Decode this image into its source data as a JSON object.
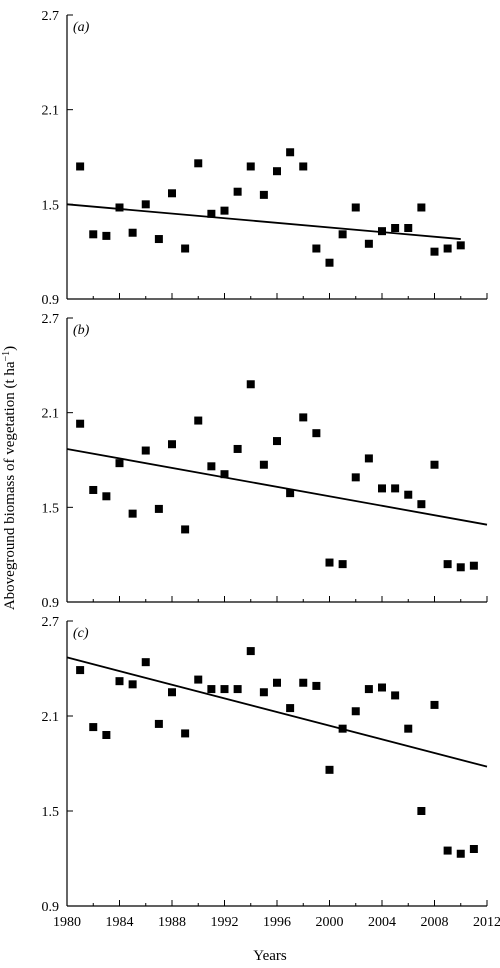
{
  "figure": {
    "ylabel": "Aboveground biomass of vegetation (t ha",
    "ylabel_sup": "−1",
    "ylabel_close": ")",
    "xlabel": "Years"
  },
  "chart_data": [
    {
      "type": "scatter",
      "panel_label": "(a)",
      "xlim": [
        1980,
        2012
      ],
      "ylim": [
        0.9,
        2.7
      ],
      "yticks": [
        "2.7",
        "2.1",
        "1.5",
        "0.9"
      ],
      "x": [
        1981,
        1982,
        1983,
        1984,
        1985,
        1986,
        1987,
        1988,
        1989,
        1990,
        1991,
        1992,
        1993,
        1994,
        1995,
        1996,
        1997,
        1998,
        1999,
        2000,
        2001,
        2002,
        2003,
        2004,
        2005,
        2006,
        2007,
        2008,
        2009,
        2010
      ],
      "y": [
        1.74,
        1.31,
        1.3,
        1.48,
        1.32,
        1.5,
        1.28,
        1.57,
        1.22,
        1.76,
        1.44,
        1.46,
        1.58,
        1.74,
        1.56,
        1.71,
        1.83,
        1.74,
        1.22,
        1.13,
        1.31,
        1.48,
        1.25,
        1.33,
        1.35,
        1.35,
        1.48,
        1.2,
        1.22,
        1.24
      ],
      "trend": {
        "x": [
          1980,
          2010
        ],
        "y": [
          1.5,
          1.28
        ]
      }
    },
    {
      "type": "scatter",
      "panel_label": "(b)",
      "xlim": [
        1980,
        2012
      ],
      "ylim": [
        0.9,
        2.7
      ],
      "yticks": [
        "2.7",
        "2.1",
        "1.5",
        "0.9"
      ],
      "x": [
        1981,
        1982,
        1983,
        1984,
        1985,
        1986,
        1987,
        1988,
        1989,
        1990,
        1991,
        1992,
        1993,
        1994,
        1995,
        1996,
        1997,
        1998,
        1999,
        2000,
        2001,
        2002,
        2003,
        2004,
        2005,
        2006,
        2007,
        2008,
        2009,
        2010,
        2011
      ],
      "y": [
        2.03,
        1.61,
        1.57,
        1.78,
        1.46,
        1.86,
        1.49,
        1.9,
        1.36,
        2.05,
        1.76,
        1.71,
        1.87,
        2.28,
        1.77,
        1.92,
        1.59,
        2.07,
        1.97,
        1.15,
        1.14,
        1.69,
        1.81,
        1.62,
        1.62,
        1.58,
        1.52,
        1.77,
        1.14,
        1.12,
        1.13
      ],
      "trend": {
        "x": [
          1980,
          2012
        ],
        "y": [
          1.87,
          1.39
        ]
      }
    },
    {
      "type": "scatter",
      "panel_label": "(c)",
      "xlim": [
        1980,
        2012
      ],
      "ylim": [
        0.9,
        2.7
      ],
      "yticks": [
        "2.7",
        "2.1",
        "1.5",
        "0.9"
      ],
      "xticks": [
        "1980",
        "1984",
        "1988",
        "1992",
        "1996",
        "2000",
        "2004",
        "2008",
        "2012"
      ],
      "x": [
        1981,
        1982,
        1983,
        1984,
        1985,
        1986,
        1987,
        1988,
        1989,
        1990,
        1991,
        1992,
        1993,
        1994,
        1995,
        1996,
        1997,
        1998,
        1999,
        2000,
        2001,
        2002,
        2003,
        2004,
        2005,
        2006,
        2007,
        2008,
        2009,
        2010,
        2011
      ],
      "y": [
        2.39,
        2.03,
        1.98,
        2.32,
        2.3,
        2.44,
        2.05,
        2.25,
        1.99,
        2.33,
        2.27,
        2.27,
        2.27,
        2.51,
        2.25,
        2.31,
        2.15,
        2.31,
        2.29,
        1.76,
        2.02,
        2.13,
        2.27,
        2.28,
        2.23,
        2.02,
        1.5,
        2.17,
        1.25,
        1.23,
        1.26
      ],
      "trend": {
        "x": [
          1980,
          2012
        ],
        "y": [
          2.47,
          1.78
        ]
      }
    }
  ]
}
